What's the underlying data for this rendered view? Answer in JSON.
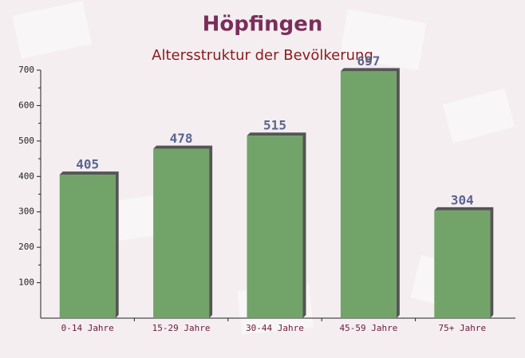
{
  "chart_data": {
    "type": "bar",
    "title": "Höpfingen",
    "subtitle": "Altersstruktur der Bevölkerung",
    "categories": [
      "0-14 Jahre",
      "15-29 Jahre",
      "30-44 Jahre",
      "45-59 Jahre",
      "75+ Jahre"
    ],
    "values": [
      405,
      478,
      515,
      697,
      304
    ],
    "color": "#6a9f62",
    "ylim": [
      0,
      700
    ],
    "yticks": [
      100,
      200,
      300,
      400,
      500,
      600,
      700
    ]
  }
}
